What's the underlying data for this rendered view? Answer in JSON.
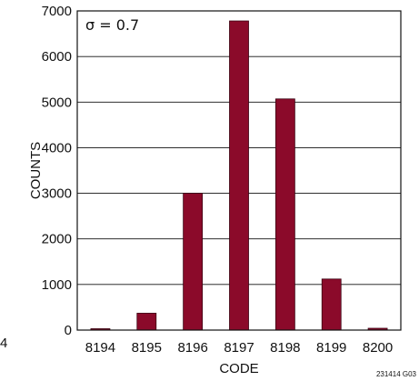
{
  "chart_data": {
    "type": "bar",
    "categories": [
      "8194",
      "8195",
      "8196",
      "8197",
      "8198",
      "8199",
      "8200"
    ],
    "values": [
      30,
      370,
      3000,
      6780,
      5070,
      1120,
      40
    ],
    "xlabel": "CODE",
    "ylabel": "COUNTS",
    "ylim": [
      0,
      7000
    ],
    "yticks": [
      0,
      1000,
      2000,
      3000,
      4000,
      5000,
      6000,
      7000
    ],
    "annotation": "σ = 0.7",
    "figure_id": "231414 G03",
    "edge_fragment": "4",
    "bar_color": "#8b0a2a",
    "grid": true
  }
}
